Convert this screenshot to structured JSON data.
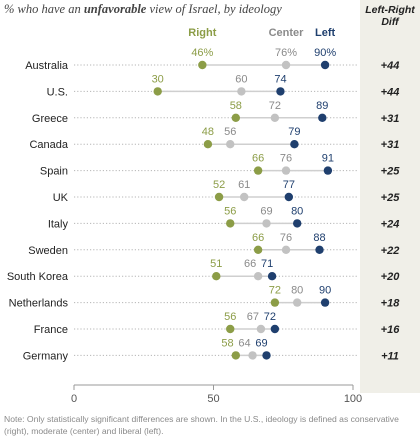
{
  "title_before": "% who have an ",
  "title_bold": "unfavorable",
  "title_after": " view of Israel, by ideology",
  "diff_header_line1": "Left-Right",
  "diff_header_line2": "Diff",
  "note": "Note: Only statistically significant differences are shown. In the U.S., ideology is defined as conservative (right), moderate (center) and liberal (left).",
  "colors": {
    "right": "#8c9d47",
    "center": "#c2c2c2",
    "left": "#1f3f6e",
    "center_text": "#8a8a8a",
    "axis": "#999999",
    "dotted": "#b5b5b5"
  },
  "chart_data": {
    "type": "scatter",
    "subtype": "dot-plot",
    "series_names": [
      "Right",
      "Center",
      "Left"
    ],
    "xlim": [
      0,
      100
    ],
    "xticks": [
      0,
      50,
      100
    ],
    "rows": [
      {
        "country": "Australia",
        "right": 46,
        "center": 76,
        "left": 90,
        "diff": "+44",
        "label_pct": true
      },
      {
        "country": "U.S.",
        "right": 30,
        "center": 60,
        "left": 74,
        "diff": "+44"
      },
      {
        "country": "Greece",
        "right": 58,
        "center": 72,
        "left": 89,
        "diff": "+31"
      },
      {
        "country": "Canada",
        "right": 48,
        "center": 56,
        "left": 79,
        "diff": "+31"
      },
      {
        "country": "Spain",
        "right": 66,
        "center": 76,
        "left": 91,
        "diff": "+25"
      },
      {
        "country": "UK",
        "right": 52,
        "center": 61,
        "left": 77,
        "diff": "+25"
      },
      {
        "country": "Italy",
        "right": 56,
        "center": 69,
        "left": 80,
        "diff": "+24"
      },
      {
        "country": "Sweden",
        "right": 66,
        "center": 76,
        "left": 88,
        "diff": "+22"
      },
      {
        "country": "South Korea",
        "right": 51,
        "center": 66,
        "left": 71,
        "diff": "+20"
      },
      {
        "country": "Netherlands",
        "right": 72,
        "center": 80,
        "left": 90,
        "diff": "+18"
      },
      {
        "country": "France",
        "right": 56,
        "center": 67,
        "left": 72,
        "diff": "+16"
      },
      {
        "country": "Germany",
        "right": 58,
        "center": 64,
        "left": 69,
        "diff": "+11"
      }
    ]
  }
}
